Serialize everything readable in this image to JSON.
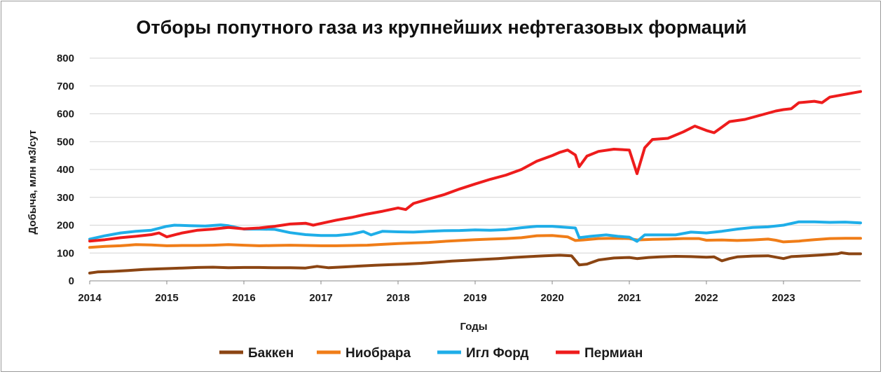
{
  "chart_data": {
    "type": "line",
    "title": "Отборы попутного газа из крупнейших нефтегазовых формаций",
    "xlabel": "Годы",
    "ylabel": "Добыча, млн м3/сут",
    "ylim": [
      0,
      800
    ],
    "yticks": [
      0,
      100,
      200,
      300,
      400,
      500,
      600,
      700,
      800
    ],
    "xlim": [
      2014,
      2024
    ],
    "xticks": [
      "2014",
      "2015",
      "2016",
      "2017",
      "2018",
      "2019",
      "2020",
      "2021",
      "2022",
      "2023"
    ],
    "grid": "horizontal",
    "legend_position": "bottom",
    "series": [
      {
        "name": "Баккен",
        "color": "#8B4513",
        "points": [
          [
            2014.0,
            28
          ],
          [
            2014.1,
            32
          ],
          [
            2014.3,
            34
          ],
          [
            2014.5,
            37
          ],
          [
            2014.7,
            41
          ],
          [
            2014.9,
            43
          ],
          [
            2015.0,
            44
          ],
          [
            2015.2,
            46
          ],
          [
            2015.4,
            48
          ],
          [
            2015.6,
            49
          ],
          [
            2015.8,
            47
          ],
          [
            2016.0,
            48
          ],
          [
            2016.2,
            48
          ],
          [
            2016.4,
            47
          ],
          [
            2016.6,
            47
          ],
          [
            2016.8,
            46
          ],
          [
            2016.95,
            52
          ],
          [
            2017.1,
            47
          ],
          [
            2017.3,
            50
          ],
          [
            2017.5,
            53
          ],
          [
            2017.7,
            56
          ],
          [
            2017.9,
            58
          ],
          [
            2018.1,
            60
          ],
          [
            2018.3,
            63
          ],
          [
            2018.5,
            67
          ],
          [
            2018.7,
            71
          ],
          [
            2018.9,
            74
          ],
          [
            2019.1,
            77
          ],
          [
            2019.3,
            80
          ],
          [
            2019.5,
            84
          ],
          [
            2019.7,
            87
          ],
          [
            2019.9,
            90
          ],
          [
            2020.1,
            92
          ],
          [
            2020.25,
            90
          ],
          [
            2020.35,
            57
          ],
          [
            2020.45,
            60
          ],
          [
            2020.6,
            75
          ],
          [
            2020.8,
            82
          ],
          [
            2021.0,
            84
          ],
          [
            2021.1,
            80
          ],
          [
            2021.25,
            84
          ],
          [
            2021.4,
            86
          ],
          [
            2021.6,
            88
          ],
          [
            2021.8,
            87
          ],
          [
            2022.0,
            85
          ],
          [
            2022.1,
            86
          ],
          [
            2022.2,
            72
          ],
          [
            2022.3,
            80
          ],
          [
            2022.4,
            86
          ],
          [
            2022.6,
            89
          ],
          [
            2022.8,
            90
          ],
          [
            2022.9,
            85
          ],
          [
            2023.0,
            80
          ],
          [
            2023.1,
            87
          ],
          [
            2023.3,
            90
          ],
          [
            2023.5,
            93
          ],
          [
            2023.7,
            97
          ],
          [
            2023.75,
            101
          ],
          [
            2023.85,
            97
          ],
          [
            2024.0,
            97
          ]
        ]
      },
      {
        "name": "Ниобрара",
        "color": "#F07D18",
        "points": [
          [
            2014.0,
            120
          ],
          [
            2014.2,
            124
          ],
          [
            2014.4,
            126
          ],
          [
            2014.5,
            128
          ],
          [
            2014.6,
            130
          ],
          [
            2014.8,
            129
          ],
          [
            2015.0,
            126
          ],
          [
            2015.2,
            127
          ],
          [
            2015.4,
            127
          ],
          [
            2015.6,
            128
          ],
          [
            2015.8,
            130
          ],
          [
            2016.0,
            128
          ],
          [
            2016.2,
            126
          ],
          [
            2016.4,
            127
          ],
          [
            2016.6,
            128
          ],
          [
            2016.8,
            127
          ],
          [
            2017.0,
            126
          ],
          [
            2017.2,
            126
          ],
          [
            2017.4,
            127
          ],
          [
            2017.6,
            128
          ],
          [
            2017.8,
            131
          ],
          [
            2018.0,
            134
          ],
          [
            2018.2,
            136
          ],
          [
            2018.4,
            138
          ],
          [
            2018.6,
            142
          ],
          [
            2018.8,
            145
          ],
          [
            2019.0,
            148
          ],
          [
            2019.2,
            150
          ],
          [
            2019.4,
            152
          ],
          [
            2019.6,
            155
          ],
          [
            2019.8,
            162
          ],
          [
            2020.0,
            163
          ],
          [
            2020.2,
            158
          ],
          [
            2020.3,
            145
          ],
          [
            2020.4,
            147
          ],
          [
            2020.6,
            152
          ],
          [
            2020.8,
            153
          ],
          [
            2021.0,
            152
          ],
          [
            2021.1,
            147
          ],
          [
            2021.3,
            149
          ],
          [
            2021.5,
            150
          ],
          [
            2021.7,
            152
          ],
          [
            2021.9,
            152
          ],
          [
            2022.0,
            146
          ],
          [
            2022.2,
            147
          ],
          [
            2022.4,
            145
          ],
          [
            2022.6,
            147
          ],
          [
            2022.8,
            150
          ],
          [
            2022.9,
            146
          ],
          [
            2023.0,
            140
          ],
          [
            2023.2,
            143
          ],
          [
            2023.4,
            148
          ],
          [
            2023.6,
            152
          ],
          [
            2023.8,
            153
          ],
          [
            2024.0,
            153
          ]
        ]
      },
      {
        "name": "Игл Форд",
        "color": "#1FAEE8",
        "points": [
          [
            2014.0,
            150
          ],
          [
            2014.2,
            162
          ],
          [
            2014.4,
            172
          ],
          [
            2014.6,
            178
          ],
          [
            2014.8,
            182
          ],
          [
            2015.0,
            196
          ],
          [
            2015.1,
            200
          ],
          [
            2015.3,
            198
          ],
          [
            2015.5,
            197
          ],
          [
            2015.7,
            201
          ],
          [
            2015.8,
            198
          ],
          [
            2016.0,
            186
          ],
          [
            2016.2,
            186
          ],
          [
            2016.4,
            185
          ],
          [
            2016.6,
            173
          ],
          [
            2016.8,
            166
          ],
          [
            2017.0,
            163
          ],
          [
            2017.2,
            163
          ],
          [
            2017.4,
            168
          ],
          [
            2017.55,
            177
          ],
          [
            2017.65,
            165
          ],
          [
            2017.8,
            178
          ],
          [
            2018.0,
            176
          ],
          [
            2018.2,
            175
          ],
          [
            2018.4,
            178
          ],
          [
            2018.6,
            180
          ],
          [
            2018.8,
            181
          ],
          [
            2019.0,
            183
          ],
          [
            2019.2,
            182
          ],
          [
            2019.4,
            184
          ],
          [
            2019.6,
            191
          ],
          [
            2019.8,
            196
          ],
          [
            2020.0,
            196
          ],
          [
            2020.2,
            192
          ],
          [
            2020.3,
            190
          ],
          [
            2020.35,
            155
          ],
          [
            2020.5,
            160
          ],
          [
            2020.7,
            165
          ],
          [
            2020.85,
            160
          ],
          [
            2021.0,
            157
          ],
          [
            2021.1,
            142
          ],
          [
            2021.2,
            165
          ],
          [
            2021.4,
            165
          ],
          [
            2021.6,
            165
          ],
          [
            2021.8,
            175
          ],
          [
            2022.0,
            172
          ],
          [
            2022.2,
            178
          ],
          [
            2022.4,
            186
          ],
          [
            2022.6,
            192
          ],
          [
            2022.8,
            194
          ],
          [
            2023.0,
            200
          ],
          [
            2023.2,
            212
          ],
          [
            2023.4,
            212
          ],
          [
            2023.6,
            210
          ],
          [
            2023.8,
            211
          ],
          [
            2024.0,
            208
          ]
        ]
      },
      {
        "name": "Пермиан",
        "color": "#EE1C1C",
        "points": [
          [
            2014.0,
            143
          ],
          [
            2014.2,
            148
          ],
          [
            2014.4,
            155
          ],
          [
            2014.6,
            160
          ],
          [
            2014.8,
            166
          ],
          [
            2014.9,
            172
          ],
          [
            2015.0,
            158
          ],
          [
            2015.2,
            172
          ],
          [
            2015.4,
            182
          ],
          [
            2015.6,
            186
          ],
          [
            2015.8,
            192
          ],
          [
            2016.0,
            187
          ],
          [
            2016.2,
            190
          ],
          [
            2016.4,
            196
          ],
          [
            2016.6,
            204
          ],
          [
            2016.8,
            207
          ],
          [
            2016.9,
            200
          ],
          [
            2017.0,
            206
          ],
          [
            2017.2,
            218
          ],
          [
            2017.4,
            228
          ],
          [
            2017.6,
            240
          ],
          [
            2017.8,
            250
          ],
          [
            2018.0,
            262
          ],
          [
            2018.1,
            256
          ],
          [
            2018.2,
            278
          ],
          [
            2018.4,
            294
          ],
          [
            2018.6,
            310
          ],
          [
            2018.8,
            330
          ],
          [
            2019.0,
            348
          ],
          [
            2019.2,
            365
          ],
          [
            2019.4,
            380
          ],
          [
            2019.6,
            400
          ],
          [
            2019.8,
            430
          ],
          [
            2020.0,
            450
          ],
          [
            2020.1,
            462
          ],
          [
            2020.2,
            470
          ],
          [
            2020.3,
            452
          ],
          [
            2020.35,
            410
          ],
          [
            2020.45,
            448
          ],
          [
            2020.6,
            465
          ],
          [
            2020.8,
            473
          ],
          [
            2021.0,
            470
          ],
          [
            2021.1,
            385
          ],
          [
            2021.2,
            478
          ],
          [
            2021.3,
            508
          ],
          [
            2021.5,
            512
          ],
          [
            2021.7,
            535
          ],
          [
            2021.85,
            556
          ],
          [
            2022.0,
            540
          ],
          [
            2022.1,
            532
          ],
          [
            2022.2,
            552
          ],
          [
            2022.3,
            572
          ],
          [
            2022.5,
            580
          ],
          [
            2022.7,
            595
          ],
          [
            2022.9,
            610
          ],
          [
            2023.0,
            615
          ],
          [
            2023.1,
            618
          ],
          [
            2023.2,
            640
          ],
          [
            2023.4,
            645
          ],
          [
            2023.5,
            640
          ],
          [
            2023.6,
            660
          ],
          [
            2023.8,
            670
          ],
          [
            2024.0,
            680
          ]
        ]
      }
    ]
  }
}
